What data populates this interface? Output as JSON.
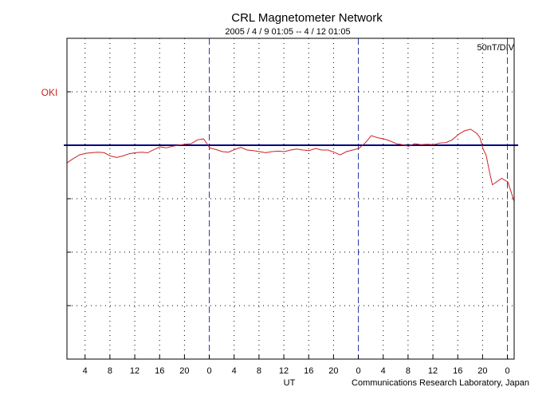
{
  "chart_data": {
    "type": "line",
    "title": "CRL Magnetometer Network",
    "subtitle": "2005 / 4 / 9  01:05 -- 4 / 12  01:05",
    "scale_label": "50nT/DIV",
    "xlabel": "UT",
    "credit": "Communications Research Laboratory, Japan",
    "station_label": "OKI",
    "colors": {
      "trace": "#cc2222",
      "baseline": "#000080",
      "day_divider": "#2233aa",
      "station_label": "#cc2222",
      "frame": "#000000"
    },
    "grid": "dotted",
    "x_unit": "hours since 2005-04-09 01:05 UT",
    "xlim": [
      0,
      72
    ],
    "ylim": [
      -4,
      2
    ],
    "y_unit": "divisions (50 nT per division), 0 = station baseline",
    "x_tick_labels": [
      "4",
      "8",
      "12",
      "16",
      "20",
      "0",
      "4",
      "8",
      "12",
      "16",
      "20",
      "0",
      "4",
      "8",
      "12",
      "16",
      "20",
      "0"
    ],
    "x_tick_values": [
      2.917,
      6.917,
      10.917,
      14.917,
      18.917,
      22.917,
      26.917,
      30.917,
      34.917,
      38.917,
      42.917,
      46.917,
      50.917,
      54.917,
      58.917,
      62.917,
      66.917,
      70.917
    ],
    "day_dividers": [
      22.917,
      46.917,
      70.917
    ],
    "series": [
      {
        "name": "OKI",
        "x": [
          0,
          1,
          2,
          3,
          4,
          5,
          6,
          7,
          8,
          9,
          10,
          11,
          12,
          13,
          14,
          15,
          16,
          17,
          18,
          19,
          20,
          21,
          22,
          23,
          24,
          25,
          26,
          27,
          28,
          29,
          30,
          31,
          32,
          33,
          34,
          35,
          36,
          37,
          38,
          39,
          40,
          41,
          42,
          43,
          44,
          45,
          46,
          47,
          48,
          49,
          50,
          51,
          52,
          53,
          54,
          55,
          56,
          57,
          58,
          59,
          60,
          61,
          62,
          63,
          64,
          65,
          66,
          66.5,
          67,
          67.5,
          68,
          68.5,
          69,
          70,
          71,
          72
        ],
        "y": [
          -0.33,
          -0.25,
          -0.18,
          -0.15,
          -0.14,
          -0.13,
          -0.14,
          -0.2,
          -0.23,
          -0.2,
          -0.16,
          -0.14,
          -0.13,
          -0.14,
          -0.08,
          -0.03,
          -0.05,
          -0.02,
          0.0,
          0.02,
          0.03,
          0.1,
          0.12,
          -0.05,
          -0.08,
          -0.12,
          -0.13,
          -0.08,
          -0.04,
          -0.09,
          -0.1,
          -0.12,
          -0.14,
          -0.12,
          -0.11,
          -0.12,
          -0.09,
          -0.07,
          -0.09,
          -0.1,
          -0.06,
          -0.09,
          -0.09,
          -0.13,
          -0.18,
          -0.12,
          -0.09,
          -0.06,
          0.04,
          0.18,
          0.14,
          0.12,
          0.08,
          0.03,
          0.01,
          -0.02,
          0.03,
          0.01,
          0.02,
          0.01,
          0.04,
          0.05,
          0.1,
          0.2,
          0.27,
          0.3,
          0.22,
          0.14,
          -0.07,
          -0.19,
          -0.48,
          -0.74,
          -0.7,
          -0.62,
          -0.69,
          -1.05
        ]
      }
    ]
  }
}
